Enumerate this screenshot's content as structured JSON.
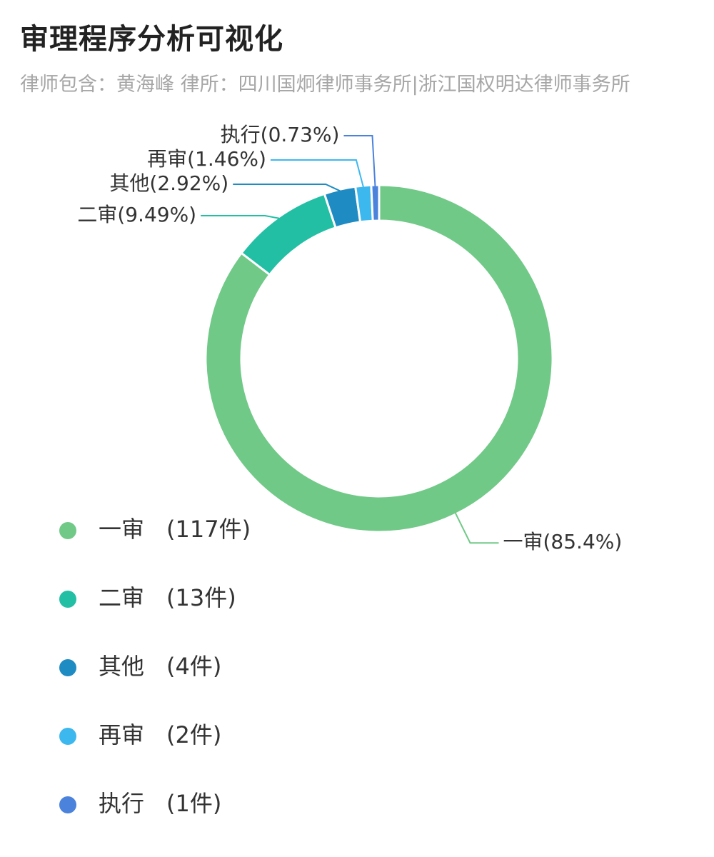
{
  "header": {
    "title": "审理程序分析可视化",
    "subtitle": "律师包含：黄海峰  律所：四川国炯律师事务所|浙江国权明达律师事务所"
  },
  "chart_data": {
    "type": "pie",
    "donut": true,
    "categories": [
      "一审",
      "二审",
      "其他",
      "再审",
      "执行"
    ],
    "values": [
      117,
      13,
      4,
      2,
      1
    ],
    "value_labels": [
      "(117件)",
      "(13件)",
      "(4件)",
      "(2件)",
      "(1件)"
    ],
    "slice_labels": [
      "一审(85.4%)",
      "二审(9.49%)",
      "其他(2.92%)",
      "再审(1.46%)",
      "执行(0.73%)"
    ],
    "colors": [
      "#70c987",
      "#22bfa5",
      "#1f8bc3",
      "#3db8ef",
      "#4a82dc"
    ],
    "legend_position": "bottom-left"
  }
}
